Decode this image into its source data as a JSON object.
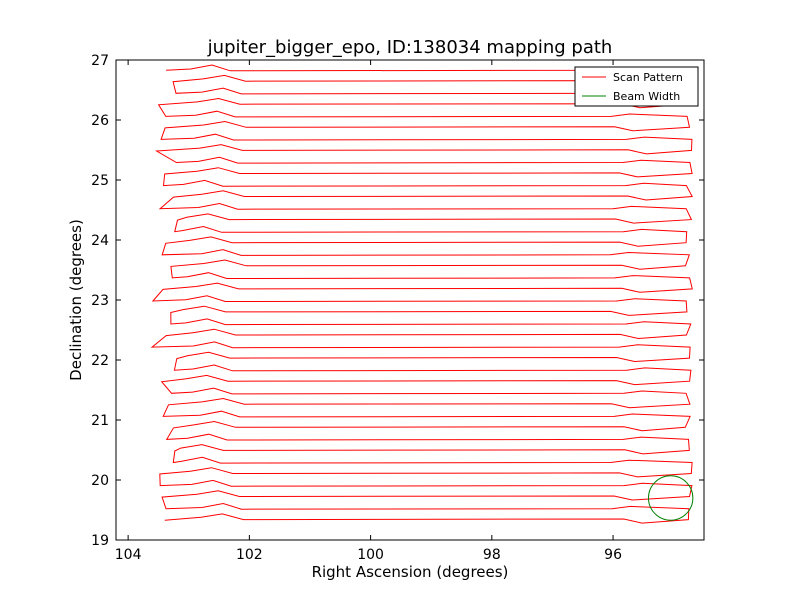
{
  "chart_data": {
    "type": "line",
    "title": "jupiter_bigger_epo, ID:138034 mapping path",
    "xlabel": "Right Ascension (degrees)",
    "ylabel": "Declination (degrees)",
    "xlim": [
      104.2,
      94.5
    ],
    "ylim": [
      19,
      27
    ],
    "x_inverted": true,
    "xticks": [
      104,
      102,
      100,
      98,
      96
    ],
    "yticks": [
      19,
      20,
      21,
      22,
      23,
      24,
      25,
      26,
      27
    ],
    "grid": false,
    "legend_position": "top-right",
    "scan": {
      "ra_east_edge": 103.4,
      "ra_west_edge": 94.75,
      "dec_start": 19.33,
      "dec_end": 26.83,
      "leg_count": 40
    },
    "series": [
      {
        "name": "Scan Pattern",
        "color": "#ff0000",
        "style": "line"
      },
      {
        "name": "Beam Width",
        "color": "#008000",
        "style": "circle",
        "center": [
          95.05,
          19.7
        ],
        "radius_deg": 0.37
      }
    ]
  }
}
